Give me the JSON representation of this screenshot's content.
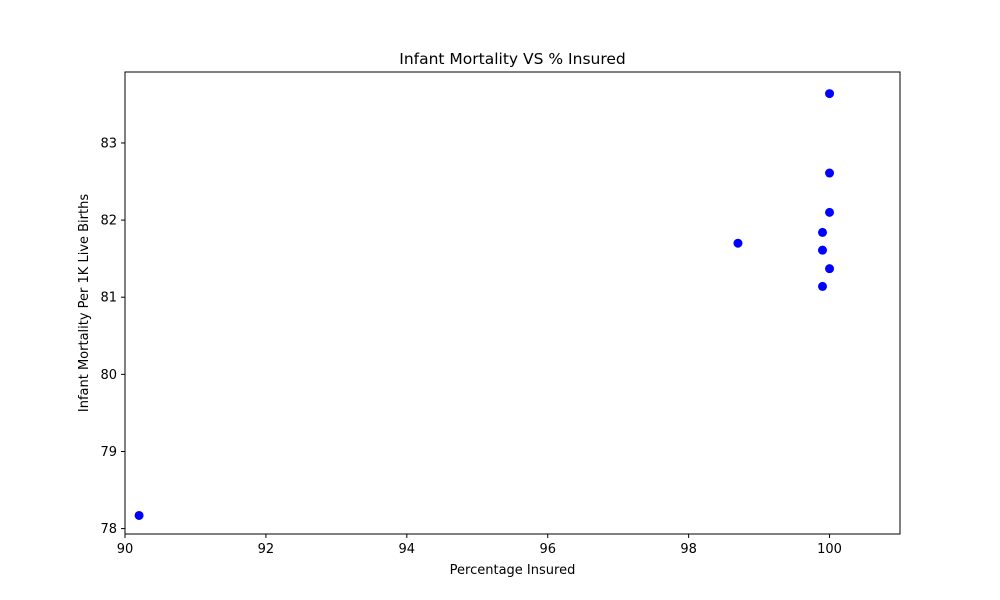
{
  "chart_data": {
    "type": "scatter",
    "title": "Infant Mortality VS % Insured",
    "xlabel": "Percentage Insured",
    "ylabel": "Infant Mortality Per 1K Live Births",
    "xlim": [
      90,
      101
    ],
    "ylim": [
      77.93,
      83.92
    ],
    "xticks": [
      90,
      92,
      94,
      96,
      98,
      100
    ],
    "yticks": [
      78,
      79,
      80,
      81,
      82,
      83
    ],
    "grid": false,
    "marker_color": "#0000ff",
    "points": [
      {
        "x": 90.2,
        "y": 78.17
      },
      {
        "x": 98.7,
        "y": 81.7
      },
      {
        "x": 99.9,
        "y": 81.84
      },
      {
        "x": 99.9,
        "y": 81.61
      },
      {
        "x": 99.9,
        "y": 81.14
      },
      {
        "x": 100.0,
        "y": 83.64
      },
      {
        "x": 100.0,
        "y": 82.61
      },
      {
        "x": 100.0,
        "y": 82.1
      },
      {
        "x": 100.0,
        "y": 81.37
      }
    ]
  }
}
